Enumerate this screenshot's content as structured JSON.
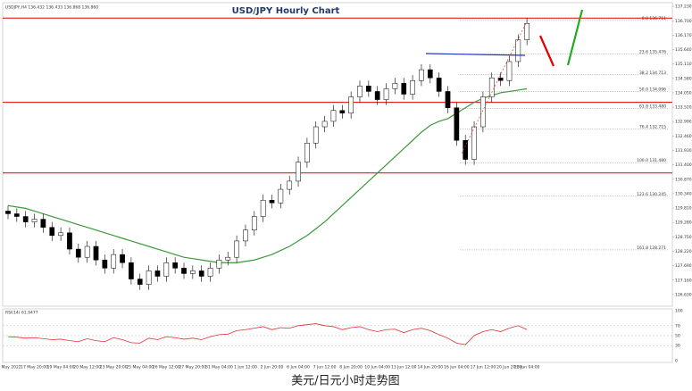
{
  "chart_data": {
    "type": "candlestick",
    "title": "USD/JPY Hourly Chart",
    "header": "USDJPY,H4  136.432 136.433 136.868 136.860",
    "categories": [
      "16 May 2022",
      null,
      null,
      "17 May 20:00",
      null,
      null,
      "19 May 04:00",
      null,
      null,
      "20 May 12:00",
      null,
      null,
      "23 May 20:00",
      null,
      null,
      "25 May 04:00",
      null,
      null,
      "26 May 12:00",
      null,
      null,
      "27 May 20:00",
      null,
      null,
      "31 May 04:00",
      null,
      null,
      "1 Jun 12:00",
      null,
      null,
      "2 Jun 20:00",
      null,
      null,
      "6 Jun 04:00",
      null,
      null,
      "7 Jun 12:00",
      null,
      null,
      "8 Jun 20:00",
      null,
      null,
      "10 Jun 04:00",
      null,
      null,
      "13 Jun 12:00",
      null,
      null,
      "14 Jun 20:00",
      null,
      null,
      "16 Jun 04:00",
      null,
      null,
      "17 Jun 12:00",
      null,
      null,
      "20 Jun 20:00",
      null,
      "22 Jun 04:00"
    ],
    "open": [
      129.7,
      129.6,
      129.5,
      129.3,
      129.4,
      129.1,
      128.8,
      128.9,
      128.3,
      128.0,
      128.4,
      127.9,
      127.6,
      128.1,
      127.8,
      127.2,
      127.0,
      127.5,
      127.3,
      127.8,
      127.6,
      127.4,
      127.5,
      127.3,
      127.6,
      127.9,
      128.0,
      128.6,
      129.0,
      129.5,
      130.1,
      130.0,
      130.5,
      130.8,
      131.5,
      132.2,
      132.8,
      133.0,
      133.4,
      133.3,
      133.9,
      134.3,
      134.1,
      133.8,
      134.2,
      134.4,
      134.0,
      134.5,
      134.9,
      134.6,
      134.1,
      133.5,
      132.3,
      131.6,
      132.8,
      133.9,
      134.6,
      134.5,
      135.2,
      136.0
    ],
    "high": [
      129.9,
      129.8,
      129.7,
      129.6,
      129.6,
      129.3,
      129.1,
      129.1,
      128.5,
      128.6,
      128.6,
      128.1,
      128.3,
      128.3,
      128.0,
      127.4,
      127.7,
      127.7,
      128.0,
      128.0,
      127.8,
      127.7,
      127.7,
      127.8,
      128.1,
      128.2,
      128.8,
      129.2,
      129.7,
      130.3,
      130.3,
      130.7,
      131.0,
      131.7,
      132.4,
      133.0,
      133.2,
      133.6,
      133.6,
      134.1,
      134.5,
      134.5,
      134.3,
      134.4,
      134.6,
      134.6,
      134.7,
      135.1,
      135.1,
      134.8,
      134.3,
      133.7,
      132.5,
      133.0,
      134.1,
      134.8,
      134.8,
      135.4,
      136.2,
      136.8
    ],
    "low": [
      129.4,
      129.3,
      129.1,
      129.1,
      128.9,
      128.6,
      128.6,
      128.1,
      127.8,
      127.8,
      127.7,
      127.4,
      127.4,
      127.6,
      127.0,
      126.8,
      126.8,
      127.1,
      127.1,
      127.4,
      127.2,
      127.2,
      127.1,
      127.1,
      127.4,
      127.7,
      127.8,
      128.4,
      128.8,
      129.3,
      129.8,
      129.8,
      130.3,
      130.6,
      131.3,
      132.0,
      132.6,
      132.8,
      133.1,
      133.1,
      133.7,
      133.9,
      133.6,
      133.6,
      134.0,
      133.8,
      133.8,
      134.3,
      134.4,
      133.9,
      133.3,
      132.1,
      131.4,
      131.4,
      132.6,
      133.7,
      134.3,
      134.3,
      135.0,
      135.8
    ],
    "close": [
      129.6,
      129.5,
      129.3,
      129.4,
      129.1,
      128.8,
      128.9,
      128.3,
      128.0,
      128.4,
      127.9,
      127.6,
      128.1,
      127.8,
      127.2,
      127.0,
      127.5,
      127.3,
      127.8,
      127.6,
      127.4,
      127.5,
      127.3,
      127.6,
      127.9,
      128.0,
      128.6,
      129.0,
      129.5,
      130.1,
      130.0,
      130.5,
      130.8,
      131.5,
      132.2,
      132.8,
      133.0,
      133.4,
      133.3,
      133.9,
      134.3,
      134.1,
      133.8,
      134.2,
      134.4,
      134.0,
      134.5,
      134.9,
      134.6,
      134.1,
      133.5,
      132.3,
      131.6,
      132.8,
      133.9,
      134.6,
      134.5,
      135.2,
      136.0,
      136.6
    ],
    "up_color": "#ffffff",
    "down_color": "#000000",
    "ylim": [
      126.2,
      137.3
    ],
    "yticks": [
      {
        "value": 126.63,
        "label": "126.630"
      },
      {
        "value": 127.16,
        "label": "127.160"
      },
      {
        "value": 127.69,
        "label": "127.690"
      },
      {
        "value": 128.22,
        "label": "128.220"
      },
      {
        "value": 128.75,
        "label": "128.750"
      },
      {
        "value": 129.28,
        "label": "129.280"
      },
      {
        "value": 129.81,
        "label": "129.810"
      },
      {
        "value": 130.34,
        "label": "130.340"
      },
      {
        "value": 130.87,
        "label": "130.870"
      },
      {
        "value": 131.4,
        "label": "131.400"
      },
      {
        "value": 131.93,
        "label": "131.930"
      },
      {
        "value": 132.46,
        "label": "132.460"
      },
      {
        "value": 132.99,
        "label": "132.990"
      },
      {
        "value": 133.52,
        "label": "133.520"
      },
      {
        "value": 134.05,
        "label": "134.050"
      },
      {
        "value": 134.58,
        "label": "134.580"
      },
      {
        "value": 135.11,
        "label": "135.110"
      },
      {
        "value": 135.64,
        "label": "135.640"
      },
      {
        "value": 136.17,
        "label": "136.170"
      },
      {
        "value": 136.7,
        "label": "136.700"
      },
      {
        "value": 137.23,
        "label": "137.230"
      }
    ],
    "grid": false,
    "levels": {
      "color": "#e00000",
      "values": [
        136.8,
        133.7,
        131.1
      ]
    },
    "fib": {
      "color": "#9a9a9a",
      "levels": [
        {
          "value": 136.711,
          "label": "0.0 136.711"
        },
        {
          "value": 135.476,
          "label": "23.6 135.476"
        },
        {
          "value": 134.713,
          "label": "38.2 134.713"
        },
        {
          "value": 134.096,
          "label": "50.0 134.096"
        },
        {
          "value": 133.48,
          "label": "61.8 133.480"
        },
        {
          "value": 132.715,
          "label": "76.4 132.715"
        },
        {
          "value": 131.48,
          "label": "100.0 131.480"
        },
        {
          "value": 130.245,
          "label": "123.6 130.245"
        },
        {
          "value": 128.271,
          "label": "161.8 128.271"
        }
      ]
    },
    "ma": {
      "color": "#3a9a3a",
      "values": [
        129.9,
        129.85,
        129.8,
        129.7,
        129.6,
        129.5,
        129.4,
        129.3,
        129.2,
        129.1,
        129.0,
        128.9,
        128.8,
        128.7,
        128.6,
        128.5,
        128.4,
        128.3,
        128.2,
        128.1,
        128.0,
        127.95,
        127.9,
        127.85,
        127.8,
        127.8,
        127.8,
        127.85,
        127.9,
        128.0,
        128.1,
        128.25,
        128.4,
        128.6,
        128.8,
        129.05,
        129.3,
        129.6,
        129.9,
        130.2,
        130.5,
        130.8,
        131.1,
        131.4,
        131.7,
        132.0,
        132.3,
        132.6,
        132.85,
        133.0,
        133.1,
        133.3,
        133.5,
        133.7,
        133.85,
        133.95,
        134.05,
        134.1,
        134.15,
        134.2
      ]
    },
    "rsi": {
      "title": "RSI(14) 61.9477",
      "color": "#e03030",
      "ylim": [
        0,
        100
      ],
      "yticks": [
        0,
        30,
        50,
        70,
        100
      ],
      "values": [
        48,
        47,
        45,
        46,
        44,
        42,
        43,
        40,
        38,
        44,
        40,
        38,
        46,
        42,
        36,
        35,
        45,
        42,
        48,
        46,
        43,
        45,
        42,
        48,
        52,
        53,
        60,
        62,
        65,
        68,
        62,
        66,
        65,
        70,
        72,
        74,
        70,
        68,
        62,
        66,
        68,
        62,
        58,
        62,
        63,
        56,
        62,
        65,
        60,
        52,
        45,
        35,
        32,
        50,
        58,
        62,
        58,
        65,
        70,
        62
      ]
    }
  },
  "caption": "美元/日元小时走势图"
}
